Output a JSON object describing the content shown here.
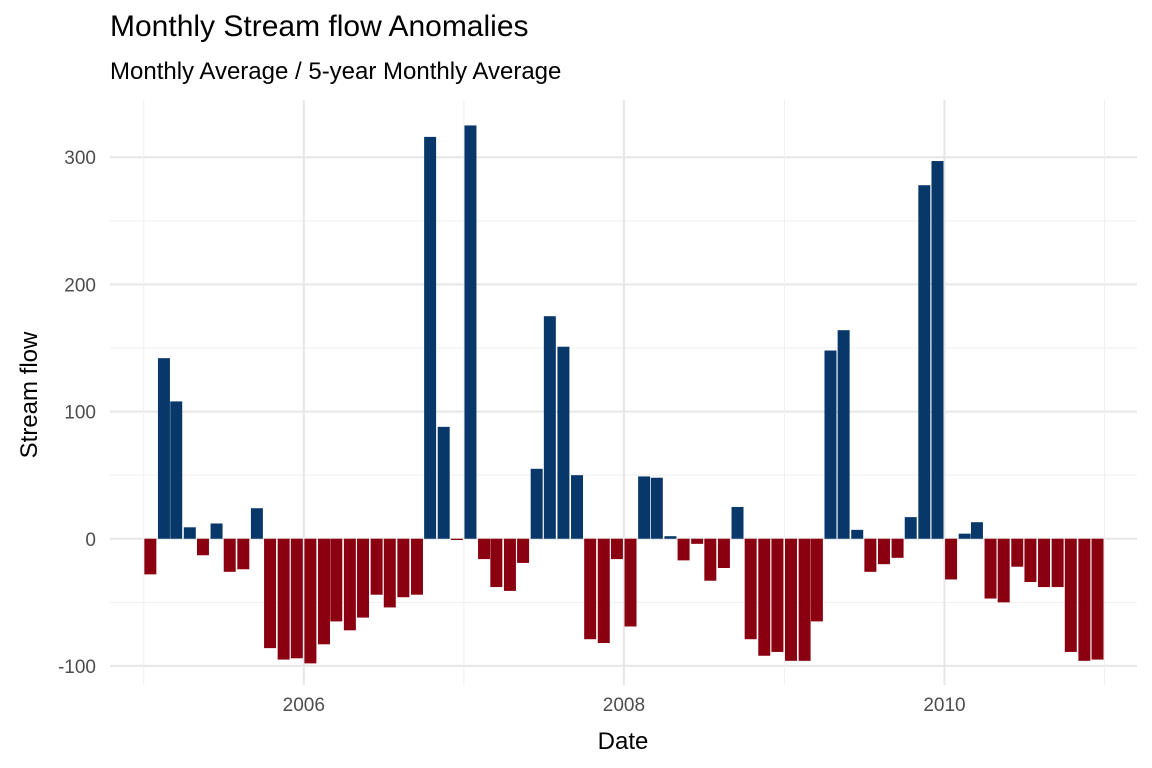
{
  "header": {
    "title": "Monthly Stream flow Anomalies",
    "subtitle": "Monthly Average / 5-year Monthly Average"
  },
  "chart_data": {
    "type": "bar",
    "title": "Monthly Stream flow Anomalies",
    "subtitle": "Monthly Average / 5-year Monthly Average",
    "xlabel": "Date",
    "ylabel": "Stream flow",
    "xlim": [
      "2004-10-16",
      "2011-03-16"
    ],
    "ylim": [
      -115,
      345
    ],
    "grid": true,
    "legend": "none",
    "x_ticks": [
      "2006",
      "2008",
      "2010"
    ],
    "y_ticks": [
      "-100",
      "0",
      "100",
      "200",
      "300"
    ],
    "colors": {
      "positive": "#08386a",
      "negative": "#8a0010"
    },
    "x": [
      "2005-01",
      "2005-02",
      "2005-03",
      "2005-04",
      "2005-05",
      "2005-06",
      "2005-07",
      "2005-08",
      "2005-09",
      "2005-10",
      "2005-11",
      "2005-12",
      "2006-01",
      "2006-02",
      "2006-03",
      "2006-04",
      "2006-05",
      "2006-06",
      "2006-07",
      "2006-08",
      "2006-09",
      "2006-10",
      "2006-11",
      "2006-12",
      "2007-01",
      "2007-02",
      "2007-03",
      "2007-04",
      "2007-05",
      "2007-06",
      "2007-07",
      "2007-08",
      "2007-09",
      "2007-10",
      "2007-11",
      "2007-12",
      "2008-01",
      "2008-02",
      "2008-03",
      "2008-04",
      "2008-05",
      "2008-06",
      "2008-07",
      "2008-08",
      "2008-09",
      "2008-10",
      "2008-11",
      "2008-12",
      "2009-01",
      "2009-02",
      "2009-03",
      "2009-04",
      "2009-05",
      "2009-06",
      "2009-07",
      "2009-08",
      "2009-09",
      "2009-10",
      "2009-11",
      "2009-12",
      "2010-01",
      "2010-02",
      "2010-03",
      "2010-04",
      "2010-05",
      "2010-06",
      "2010-07",
      "2010-08",
      "2010-09",
      "2010-10",
      "2010-11",
      "2010-12"
    ],
    "values": [
      -28,
      142,
      108,
      9,
      -13,
      12,
      -26,
      -24,
      24,
      -86,
      -95,
      -94,
      -98,
      -83,
      -65,
      -72,
      -62,
      -44,
      -54,
      -46,
      -44,
      316,
      88,
      -1,
      325,
      -16,
      -38,
      -41,
      -19,
      55,
      175,
      151,
      50,
      -79,
      -82,
      -16,
      -69,
      49,
      48,
      2,
      -17,
      -4,
      -33,
      -23,
      25,
      -79,
      -92,
      -89,
      -96,
      -96,
      -65,
      148,
      164,
      7,
      -26,
      -20,
      -15,
      17,
      278,
      297,
      -32,
      4,
      13,
      -47,
      -50,
      -22,
      -34,
      -38,
      -38,
      -89,
      -96,
      -95
    ]
  }
}
